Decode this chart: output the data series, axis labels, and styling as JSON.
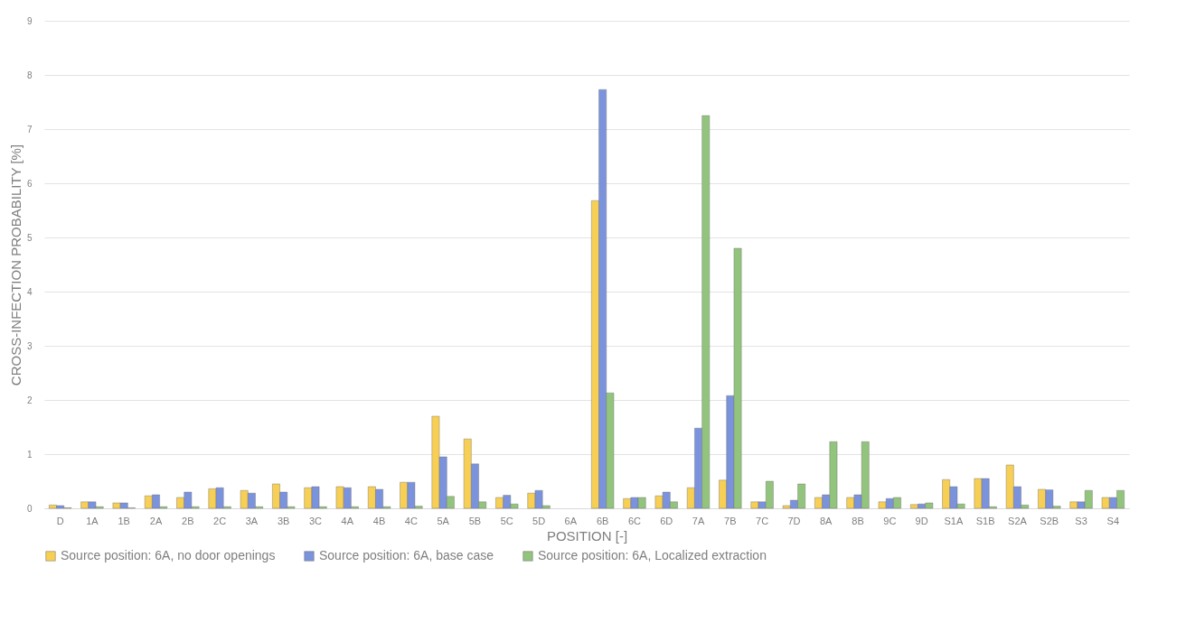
{
  "chart_data": {
    "type": "bar",
    "xlabel": "POSITION [-]",
    "ylabel": "CROSS-INFECTION PROBABILITY [%]",
    "categories": [
      "D",
      "1A",
      "1B",
      "2A",
      "2B",
      "2C",
      "3A",
      "3B",
      "3C",
      "4A",
      "4B",
      "4C",
      "5A",
      "5B",
      "5C",
      "5D",
      "6A",
      "6B",
      "6C",
      "6D",
      "7A",
      "7B",
      "7C",
      "7D",
      "8A",
      "8B",
      "9C",
      "9D",
      "S1A",
      "S1B",
      "S2A",
      "S2B",
      "S3",
      "S4"
    ],
    "series": [
      {
        "name": "Source position: 6A, no door openings",
        "color": "#f7cf55",
        "values": [
          0.06,
          0.12,
          0.1,
          0.23,
          0.2,
          0.36,
          0.33,
          0.45,
          0.38,
          0.4,
          0.4,
          0.48,
          1.7,
          1.28,
          0.2,
          0.28,
          0,
          5.68,
          0.18,
          0.23,
          0.38,
          0.52,
          0.12,
          0.05,
          0.2,
          0.2,
          0.12,
          0.07,
          0.53,
          0.55,
          0.8,
          0.35,
          0.12,
          0.2
        ]
      },
      {
        "name": "Source position: 6A, base case",
        "color": "#7b93dd",
        "values": [
          0.05,
          0.12,
          0.1,
          0.25,
          0.3,
          0.38,
          0.28,
          0.3,
          0.4,
          0.38,
          0.35,
          0.48,
          0.95,
          0.82,
          0.24,
          0.33,
          0,
          7.73,
          0.2,
          0.3,
          1.48,
          2.08,
          0.12,
          0.15,
          0.25,
          0.25,
          0.18,
          0.08,
          0.4,
          0.55,
          0.4,
          0.34,
          0.12,
          0.2
        ]
      },
      {
        "name": "Source position: 6A, Localized extraction",
        "color": "#93c47d",
        "values": [
          0.01,
          0.03,
          0.01,
          0.03,
          0.03,
          0.03,
          0.03,
          0.03,
          0.03,
          0.03,
          0.03,
          0.04,
          0.22,
          0.12,
          0.08,
          0.05,
          0,
          2.13,
          0.2,
          0.12,
          7.25,
          4.8,
          0.5,
          0.45,
          1.23,
          1.23,
          0.2,
          0.1,
          0.08,
          0.03,
          0.06,
          0.04,
          0.33,
          0.33
        ]
      }
    ],
    "ylim": [
      0,
      9
    ],
    "yticks": [
      0,
      1,
      2,
      3,
      4,
      5,
      6,
      7,
      8,
      9
    ],
    "grid": "y",
    "legend": "bottom"
  }
}
